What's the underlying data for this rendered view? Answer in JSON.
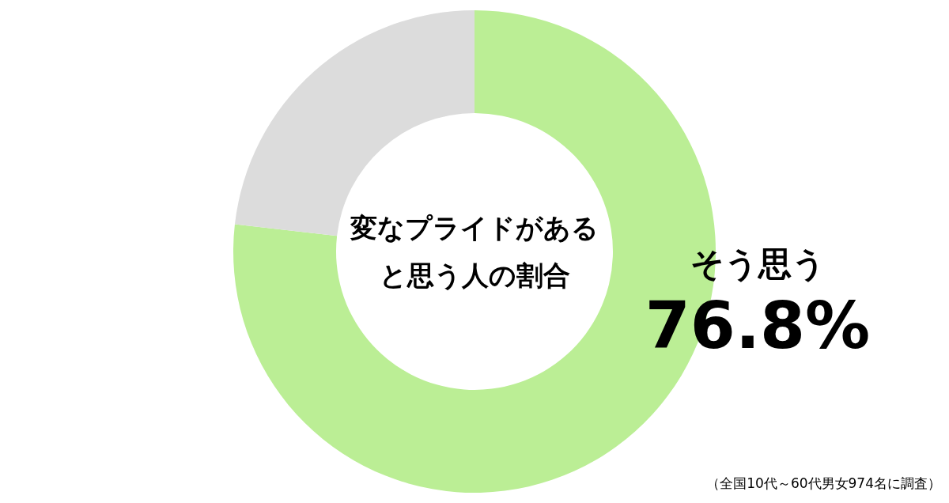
{
  "chart_data": {
    "type": "donut",
    "title": "変なプライドがある",
    "subtitle": "と思う人の割合",
    "categories": [
      "そう思う",
      null
    ],
    "values": [
      76.8,
      23.2
    ],
    "colors": [
      "#bbee95",
      "#dcdcdc"
    ],
    "value_labels": [
      "76.8%",
      null
    ],
    "annotations": [
      "（全国10代～60代男女974名に調査）"
    ]
  }
}
